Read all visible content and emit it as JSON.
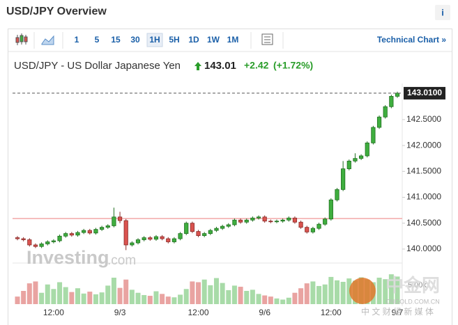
{
  "header": {
    "title": "USD/JPY Overview",
    "info": "i"
  },
  "toolbar": {
    "intervals": [
      "1",
      "5",
      "15",
      "30",
      "1H",
      "5H",
      "1D",
      "1W",
      "1M"
    ],
    "active": "1H",
    "link": "Technical Chart »"
  },
  "quote": {
    "name": "USD/JPY - US Dollar Japanese Yen",
    "price": "143.01",
    "change": "+2.42",
    "change_pct": "(+1.72%)"
  },
  "branding": {
    "name": "Investing",
    "suffix": ".com"
  },
  "overlay_watermark": {
    "logo": "中金网",
    "domain": "CNGOLD.COM.CN",
    "slogan": "中 文 财 经 新 媒 体"
  },
  "chart_data": {
    "type": "candlestick",
    "categories": [
      null,
      null,
      null,
      null,
      null,
      null,
      "12:00",
      null,
      null,
      null,
      null,
      null,
      null,
      null,
      null,
      null,
      null,
      "9/3",
      null,
      null,
      null,
      null,
      null,
      null,
      null,
      null,
      null,
      null,
      null,
      null,
      "12:00",
      null,
      null,
      null,
      null,
      null,
      null,
      null,
      null,
      null,
      null,
      "9/6",
      null,
      null,
      null,
      null,
      null,
      null,
      null,
      null,
      null,
      null,
      "12:00",
      null,
      null,
      null,
      null,
      null,
      null,
      null,
      null,
      null,
      null,
      "9/7"
    ],
    "open": [
      140.22,
      140.2,
      140.18,
      140.08,
      140.05,
      140.1,
      140.14,
      140.16,
      140.25,
      140.3,
      140.27,
      140.32,
      140.36,
      140.31,
      140.38,
      140.42,
      140.45,
      140.62,
      140.55,
      140.08,
      140.12,
      140.18,
      140.22,
      140.19,
      140.24,
      140.2,
      140.14,
      140.2,
      140.3,
      140.5,
      140.34,
      140.26,
      140.3,
      140.36,
      140.4,
      140.44,
      140.47,
      140.56,
      140.52,
      140.56,
      140.6,
      140.62,
      140.54,
      140.53,
      140.54,
      140.56,
      140.6,
      140.52,
      140.42,
      140.33,
      140.4,
      140.48,
      140.58,
      140.95,
      141.15,
      141.55,
      141.7,
      141.75,
      141.8,
      142.05,
      142.35,
      142.55,
      142.75,
      142.95
    ],
    "high": [
      140.25,
      140.23,
      140.21,
      140.11,
      140.13,
      140.17,
      140.19,
      140.28,
      140.33,
      140.33,
      140.35,
      140.39,
      140.39,
      140.41,
      140.45,
      140.48,
      140.8,
      140.72,
      140.58,
      140.15,
      140.21,
      140.25,
      140.25,
      140.27,
      140.27,
      140.23,
      140.23,
      140.33,
      140.53,
      140.53,
      140.37,
      140.33,
      140.39,
      140.43,
      140.47,
      140.5,
      140.59,
      140.59,
      140.59,
      140.63,
      140.65,
      140.65,
      140.57,
      140.57,
      140.59,
      140.63,
      140.63,
      140.55,
      140.45,
      140.43,
      140.51,
      140.61,
      140.98,
      141.18,
      141.7,
      141.73,
      141.85,
      141.83,
      142.08,
      142.38,
      142.58,
      142.78,
      142.98,
      143.04
    ],
    "low": [
      140.17,
      140.15,
      140.05,
      140.02,
      140.02,
      140.07,
      140.11,
      140.13,
      140.22,
      140.24,
      140.24,
      140.29,
      140.28,
      140.28,
      140.35,
      140.39,
      140.42,
      140.5,
      139.98,
      140.05,
      140.09,
      140.15,
      140.16,
      140.16,
      140.17,
      140.11,
      140.11,
      140.17,
      140.27,
      140.31,
      140.23,
      140.23,
      140.27,
      140.33,
      140.37,
      140.41,
      140.44,
      140.49,
      140.49,
      140.53,
      140.57,
      140.51,
      140.5,
      140.5,
      140.51,
      140.53,
      140.49,
      140.39,
      140.3,
      140.3,
      140.37,
      140.45,
      140.55,
      140.92,
      141.12,
      141.52,
      141.67,
      141.72,
      141.77,
      142.02,
      142.32,
      142.52,
      142.72,
      142.92
    ],
    "close": [
      140.2,
      140.18,
      140.08,
      140.05,
      140.1,
      140.14,
      140.16,
      140.25,
      140.3,
      140.27,
      140.32,
      140.36,
      140.31,
      140.38,
      140.42,
      140.45,
      140.62,
      140.55,
      140.08,
      140.12,
      140.18,
      140.22,
      140.19,
      140.24,
      140.2,
      140.14,
      140.2,
      140.3,
      140.5,
      140.34,
      140.26,
      140.3,
      140.36,
      140.4,
      140.44,
      140.47,
      140.56,
      140.52,
      140.56,
      140.6,
      140.62,
      140.54,
      140.53,
      140.54,
      140.56,
      140.6,
      140.52,
      140.42,
      140.33,
      140.4,
      140.48,
      140.58,
      140.95,
      141.15,
      141.55,
      141.7,
      141.75,
      141.8,
      142.05,
      142.35,
      142.55,
      142.75,
      142.95,
      143.01
    ],
    "volume": [
      2000,
      3500,
      5500,
      6000,
      3000,
      5200,
      4000,
      5800,
      4500,
      3200,
      4200,
      2800,
      3300,
      2600,
      3100,
      4900,
      7000,
      4300,
      6500,
      3800,
      3000,
      2400,
      2200,
      3400,
      2700,
      2000,
      1800,
      2500,
      4000,
      6000,
      5800,
      6500,
      5000,
      6900,
      5600,
      3700,
      4900,
      4600,
      3500,
      3800,
      2700,
      2300,
      2000,
      1500,
      1200,
      1700,
      3000,
      4200,
      5500,
      6000,
      4800,
      5200,
      7200,
      6300,
      5900,
      6800,
      6200,
      7100,
      6500,
      5800,
      7000,
      6600,
      7900,
      7300
    ],
    "up_color": "#3fae3f",
    "down_color": "#d9534f",
    "up_volume_color": "#a8dba8",
    "down_volume_color": "#e9a3a1",
    "ylim": [
      139.73,
      143.13
    ],
    "yticks": [
      {
        "value": 140,
        "label": "140.0000"
      },
      {
        "value": 140.5,
        "label": "140.5000"
      },
      {
        "value": 141,
        "label": "141.0000"
      },
      {
        "value": 141.5,
        "label": "141.5000"
      },
      {
        "value": 142,
        "label": "142.0000"
      },
      {
        "value": 142.5,
        "label": "142.5000"
      }
    ],
    "last_price": {
      "value": 143.01,
      "label": "143.0100"
    },
    "previous_close": 140.59,
    "previous_close_color": "#f4a7a7",
    "volume_ylim": [
      0,
      10500
    ],
    "volume_yticks": [
      {
        "value": 5000,
        "label": "5.00k"
      }
    ]
  }
}
